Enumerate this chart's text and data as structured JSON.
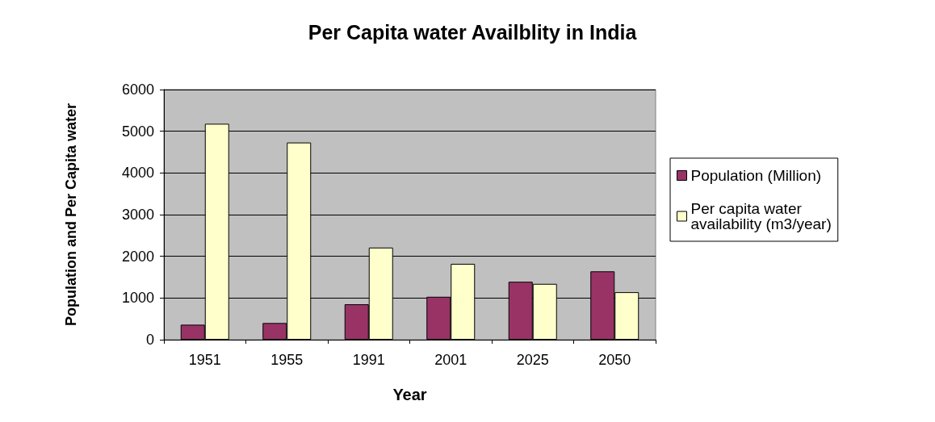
{
  "chart_data": {
    "type": "bar",
    "title": "Per Capita water Availblity in India",
    "xlabel": "Year",
    "ylabel": "Population and Per Capita water",
    "categories": [
      "1951",
      "1955",
      "1991",
      "2001",
      "2025",
      "2050"
    ],
    "series": [
      {
        "name": "Population (Million)",
        "color": "#993366",
        "values": [
          360,
          400,
          850,
          1030,
          1390,
          1640
        ]
      },
      {
        "name": "Per capita water availability (m3/year)",
        "color": "#ffffcc",
        "values": [
          5180,
          4730,
          2210,
          1820,
          1340,
          1140
        ]
      }
    ],
    "ylim": [
      0,
      6000
    ],
    "yticks": [
      0,
      1000,
      2000,
      3000,
      4000,
      5000,
      6000
    ],
    "grid": "y",
    "legend": "right"
  }
}
